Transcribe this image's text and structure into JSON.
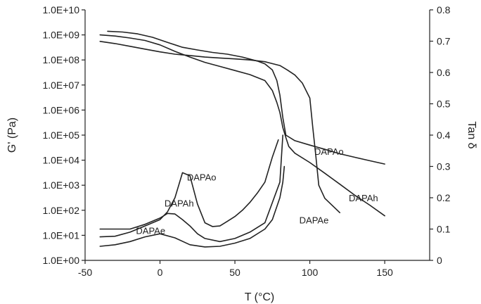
{
  "chart_data": {
    "type": "line",
    "xlabel": "T (°C)",
    "ylabel": "G' (Pa)",
    "y2label": "Tan δ",
    "xlim": [
      -50,
      180
    ],
    "ylim_log10": [
      0,
      10
    ],
    "y2lim": [
      0,
      0.8
    ],
    "x_tick_values": [
      -50,
      0,
      50,
      100,
      150
    ],
    "x_tick_labels": [
      "-50",
      "0",
      "50",
      "100",
      "150"
    ],
    "y_tick_labels": [
      "1.0E+00",
      "1.0E+01",
      "1.0E+02",
      "1.0E+03",
      "1.0E+04",
      "1.0E+05",
      "1.0E+06",
      "1.0E+07",
      "1.0E+08",
      "1.0E+09",
      "1.0E+10"
    ],
    "y2_tick_labels": [
      "0",
      "0.1",
      "0.2",
      "0.3",
      "0.4",
      "0.5",
      "0.6",
      "0.7",
      "0.8"
    ],
    "grid": false,
    "legend": "none",
    "series": [
      {
        "label": "DAPAo",
        "quantity": "G'",
        "axis": "left",
        "x": [
          -35,
          -25,
          -15,
          -5,
          5,
          15,
          25,
          35,
          45,
          55,
          65,
          70,
          75,
          78,
          80,
          82,
          84,
          90,
          100,
          110,
          120,
          130,
          140,
          150
        ],
        "y": [
          1400000000.0,
          1300000000.0,
          1100000000.0,
          800000000.0,
          500000000.0,
          320000000.0,
          250000000.0,
          200000000.0,
          170000000.0,
          130000000.0,
          90000000.0,
          70000000.0,
          40000000.0,
          15000000.0,
          4000000.0,
          500000.0,
          100000.0,
          60000.0,
          40000.0,
          27000.0,
          18000.0,
          13000.0,
          9500.0,
          7000.0
        ]
      },
      {
        "label": "DAPAh",
        "quantity": "G'",
        "axis": "left",
        "x": [
          -40,
          -30,
          -20,
          -10,
          0,
          10,
          20,
          30,
          40,
          50,
          60,
          70,
          75,
          78,
          80,
          82,
          84,
          86,
          90,
          100,
          110,
          120,
          130,
          140,
          150
        ],
        "y": [
          1000000000.0,
          900000000.0,
          750000000.0,
          600000000.0,
          400000000.0,
          220000000.0,
          130000000.0,
          80000000.0,
          55000000.0,
          38000000.0,
          26000000.0,
          15000000.0,
          6000000.0,
          2000000.0,
          800000.0,
          200000.0,
          80000.0,
          35000.0,
          19000.0,
          8000.0,
          3000.0,
          1100.0,
          400.0,
          160.0,
          60.0
        ]
      },
      {
        "label": "DAPAe",
        "quantity": "G'",
        "axis": "left",
        "x": [
          -40,
          -30,
          -20,
          -10,
          0,
          10,
          20,
          30,
          40,
          50,
          60,
          70,
          80,
          85,
          90,
          95,
          100,
          102,
          104,
          106,
          110,
          120
        ],
        "y": [
          550000000.0,
          450000000.0,
          350000000.0,
          270000000.0,
          210000000.0,
          170000000.0,
          150000000.0,
          130000000.0,
          120000000.0,
          110000000.0,
          100000000.0,
          85000000.0,
          60000000.0,
          40000000.0,
          25000000.0,
          12000000.0,
          3000000.0,
          200000.0,
          15000.0,
          1000.0,
          300.0,
          80.0
        ]
      },
      {
        "label": "DAPAo",
        "quantity": "tan δ",
        "axis": "right",
        "x": [
          -40,
          -30,
          -20,
          -10,
          0,
          5,
          10,
          15,
          20,
          25,
          30,
          35,
          40,
          45,
          50,
          55,
          60,
          65,
          70,
          75,
          79
        ],
        "y": [
          0.075,
          0.077,
          0.09,
          0.11,
          0.13,
          0.155,
          0.2,
          0.28,
          0.27,
          0.18,
          0.12,
          0.108,
          0.11,
          0.125,
          0.14,
          0.16,
          0.185,
          0.215,
          0.25,
          0.33,
          0.385
        ]
      },
      {
        "label": "DAPAh",
        "quantity": "tan δ",
        "axis": "right",
        "x": [
          -40,
          -30,
          -20,
          -10,
          0,
          5,
          10,
          15,
          20,
          25,
          30,
          40,
          50,
          60,
          70,
          80,
          82
        ],
        "y": [
          0.1,
          0.1,
          0.1,
          0.115,
          0.135,
          0.15,
          0.148,
          0.13,
          0.11,
          0.085,
          0.07,
          0.06,
          0.07,
          0.09,
          0.12,
          0.25,
          0.4
        ]
      },
      {
        "label": "DAPAe",
        "quantity": "tan δ",
        "axis": "right",
        "x": [
          -40,
          -30,
          -20,
          -10,
          0,
          10,
          20,
          30,
          40,
          50,
          60,
          70,
          75,
          80,
          82,
          83
        ],
        "y": [
          0.045,
          0.05,
          0.06,
          0.075,
          0.085,
          0.072,
          0.05,
          0.043,
          0.045,
          0.055,
          0.07,
          0.1,
          0.13,
          0.2,
          0.25,
          0.3
        ]
      }
    ],
    "annotations": [
      {
        "text": "DAPAo",
        "x": 103,
        "axis": "right",
        "y": 0.348
      },
      {
        "text": "DAPAh",
        "x": 126,
        "axis": "right",
        "y": 0.2
      },
      {
        "text": "DAPAe",
        "x": 93,
        "axis": "right",
        "y": 0.129
      },
      {
        "text": "DAPAo",
        "x": 18,
        "axis": "right",
        "y": 0.266
      },
      {
        "text": "DAPAh",
        "x": 3,
        "axis": "right",
        "y": 0.183
      },
      {
        "text": "DAPAe",
        "x": -16,
        "axis": "right",
        "y": 0.096
      }
    ]
  }
}
